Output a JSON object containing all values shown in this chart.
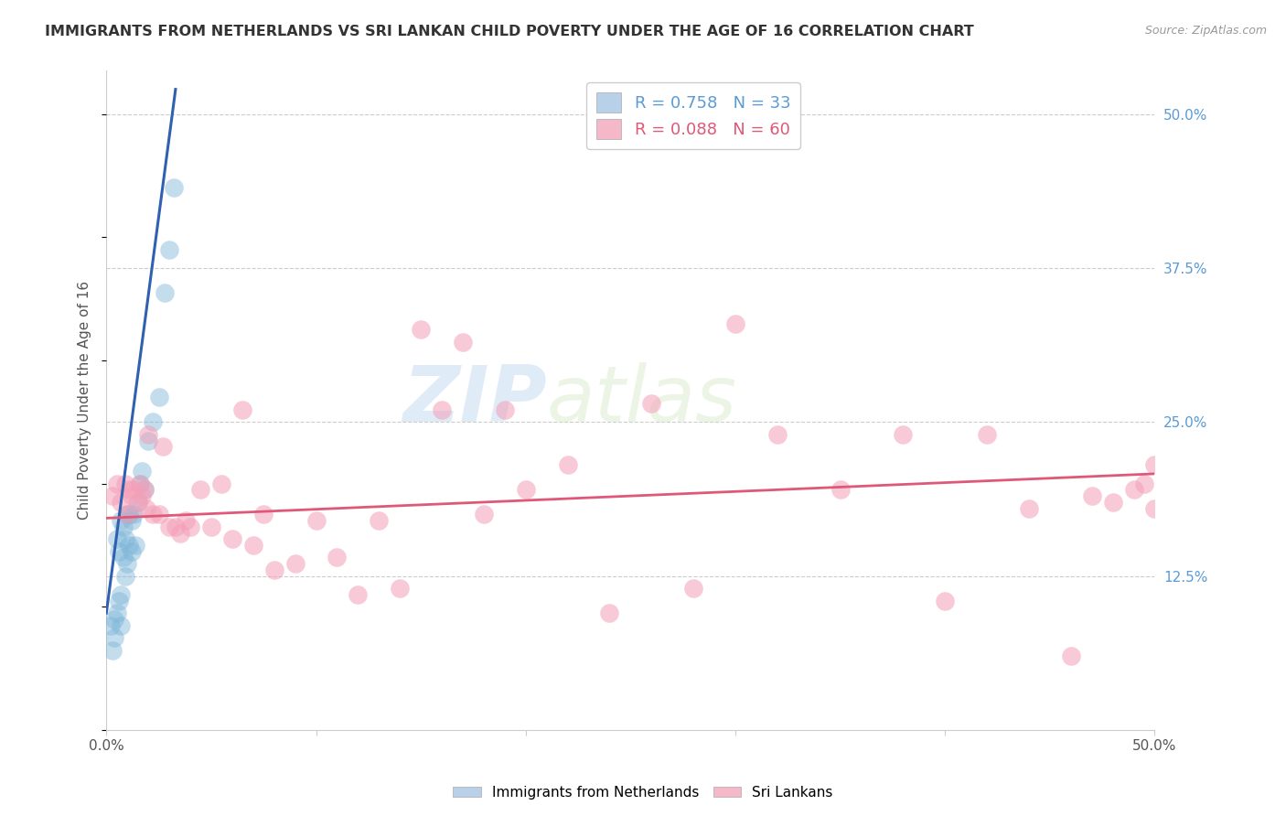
{
  "title": "IMMIGRANTS FROM NETHERLANDS VS SRI LANKAN CHILD POVERTY UNDER THE AGE OF 16 CORRELATION CHART",
  "source": "Source: ZipAtlas.com",
  "ylabel": "Child Poverty Under the Age of 16",
  "right_yticks": [
    "50.0%",
    "37.5%",
    "25.0%",
    "12.5%"
  ],
  "right_ytick_vals": [
    0.5,
    0.375,
    0.25,
    0.125
  ],
  "xmin": 0.0,
  "xmax": 0.5,
  "ymin": 0.0,
  "ymax": 0.535,
  "legend1_label": "R = 0.758   N = 33",
  "legend2_label": "R = 0.088   N = 60",
  "legend1_color": "#b8d0e8",
  "legend2_color": "#f4b8c8",
  "scatter_blue_color": "#7ab4d8",
  "scatter_pink_color": "#f4a0b8",
  "line_blue_color": "#3060b0",
  "line_pink_color": "#e05878",
  "watermark_zip": "ZIP",
  "watermark_atlas": "atlas",
  "blue_points_x": [
    0.002,
    0.003,
    0.004,
    0.004,
    0.005,
    0.005,
    0.006,
    0.006,
    0.007,
    0.007,
    0.007,
    0.008,
    0.008,
    0.009,
    0.009,
    0.01,
    0.01,
    0.011,
    0.011,
    0.012,
    0.012,
    0.013,
    0.014,
    0.015,
    0.016,
    0.017,
    0.018,
    0.02,
    0.022,
    0.025,
    0.028,
    0.03,
    0.032
  ],
  "blue_points_y": [
    0.085,
    0.065,
    0.09,
    0.075,
    0.155,
    0.095,
    0.145,
    0.105,
    0.17,
    0.11,
    0.085,
    0.165,
    0.14,
    0.155,
    0.125,
    0.175,
    0.135,
    0.175,
    0.15,
    0.17,
    0.145,
    0.175,
    0.15,
    0.185,
    0.2,
    0.21,
    0.195,
    0.235,
    0.25,
    0.27,
    0.355,
    0.39,
    0.44
  ],
  "pink_points_x": [
    0.003,
    0.005,
    0.007,
    0.009,
    0.01,
    0.011,
    0.012,
    0.013,
    0.015,
    0.016,
    0.017,
    0.018,
    0.019,
    0.02,
    0.022,
    0.025,
    0.027,
    0.03,
    0.033,
    0.035,
    0.038,
    0.04,
    0.045,
    0.05,
    0.055,
    0.06,
    0.065,
    0.07,
    0.075,
    0.08,
    0.09,
    0.1,
    0.11,
    0.12,
    0.13,
    0.14,
    0.15,
    0.16,
    0.17,
    0.18,
    0.19,
    0.2,
    0.22,
    0.24,
    0.26,
    0.28,
    0.3,
    0.32,
    0.35,
    0.38,
    0.4,
    0.42,
    0.44,
    0.46,
    0.47,
    0.48,
    0.49,
    0.495,
    0.5,
    0.5
  ],
  "pink_points_y": [
    0.19,
    0.2,
    0.185,
    0.2,
    0.175,
    0.195,
    0.19,
    0.195,
    0.185,
    0.2,
    0.19,
    0.195,
    0.18,
    0.24,
    0.175,
    0.175,
    0.23,
    0.165,
    0.165,
    0.16,
    0.17,
    0.165,
    0.195,
    0.165,
    0.2,
    0.155,
    0.26,
    0.15,
    0.175,
    0.13,
    0.135,
    0.17,
    0.14,
    0.11,
    0.17,
    0.115,
    0.325,
    0.26,
    0.315,
    0.175,
    0.26,
    0.195,
    0.215,
    0.095,
    0.265,
    0.115,
    0.33,
    0.24,
    0.195,
    0.24,
    0.105,
    0.24,
    0.18,
    0.06,
    0.19,
    0.185,
    0.195,
    0.2,
    0.215,
    0.18
  ],
  "blue_line_x": [
    0.0,
    0.033
  ],
  "blue_line_y": [
    0.095,
    0.52
  ],
  "pink_line_x": [
    0.0,
    0.5
  ],
  "pink_line_y": [
    0.172,
    0.208
  ]
}
